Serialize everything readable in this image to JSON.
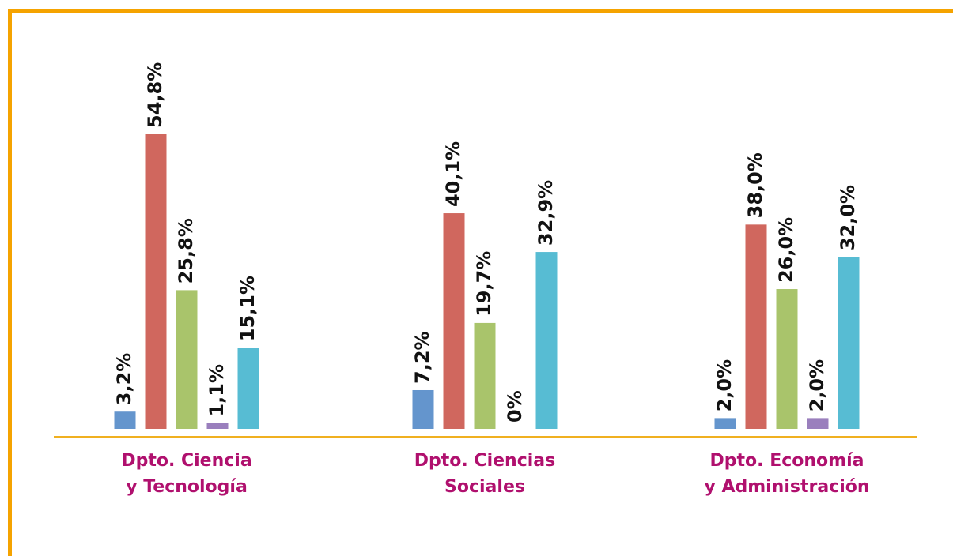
{
  "chart_data": {
    "type": "bar",
    "categories": [
      [
        "Dpto. Ciencia",
        "y Tecnología"
      ],
      [
        "Dpto. Ciencias",
        "Sociales"
      ],
      [
        "Dpto. Economía",
        "y Administración"
      ]
    ],
    "series": [
      {
        "color": "#6495cd",
        "values": [
          3.2,
          7.2,
          2.0
        ],
        "value_labels": [
          "3,2%",
          "7,2%",
          "2,0%"
        ]
      },
      {
        "color": "#d0675e",
        "values": [
          54.8,
          40.1,
          38.0
        ],
        "value_labels": [
          "54,8%",
          "40,1%",
          "38,0%"
        ]
      },
      {
        "color": "#a9c46b",
        "values": [
          25.8,
          19.7,
          26.0
        ],
        "value_labels": [
          "25,8%",
          "19,7%",
          "26,0%"
        ]
      },
      {
        "color": "#9a7fbd",
        "values": [
          1.1,
          0,
          2.0
        ],
        "value_labels": [
          "1,1%",
          "0%",
          "2,0%"
        ]
      },
      {
        "color": "#57bcd3",
        "values": [
          15.1,
          32.9,
          32.0
        ],
        "value_labels": [
          "15,1%",
          "32,9%",
          "32,0%"
        ]
      }
    ]
  }
}
